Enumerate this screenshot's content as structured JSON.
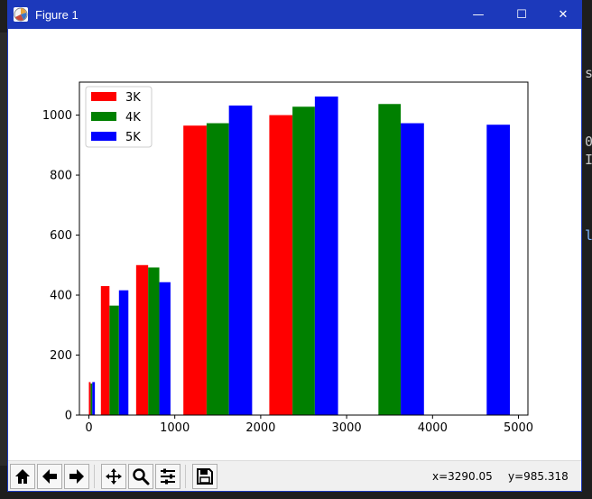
{
  "window": {
    "title": "Figure 1",
    "controls": {
      "minimize": "—",
      "maximize": "☐",
      "close": "✕"
    }
  },
  "background_editor": {
    "glyphs": [
      "s",
      "0",
      "I",
      "l"
    ]
  },
  "toolbar": {
    "buttons": [
      {
        "name": "home",
        "icon": "home-icon"
      },
      {
        "name": "back",
        "icon": "back-arrow-icon"
      },
      {
        "name": "forward",
        "icon": "forward-arrow-icon"
      },
      {
        "name": "pan",
        "icon": "move-icon"
      },
      {
        "name": "zoom",
        "icon": "magnifier-icon"
      },
      {
        "name": "configure",
        "icon": "sliders-icon"
      },
      {
        "name": "save",
        "icon": "floppy-icon"
      }
    ],
    "cursor_x": "x=3290.05",
    "cursor_y": "y=985.318"
  },
  "chart_data": {
    "type": "bar",
    "title": "",
    "xlabel": "",
    "ylabel": "",
    "xlim": [
      -110,
      5110
    ],
    "ylim": [
      0,
      1110
    ],
    "xticks": [
      0,
      1000,
      2000,
      3000,
      4000,
      5000
    ],
    "yticks": [
      0,
      200,
      400,
      600,
      800,
      1000
    ],
    "legend_position": "top-left",
    "series": [
      {
        "name": "3K",
        "color": "#ff0000",
        "bars": [
          {
            "x0": 0,
            "x1": 20,
            "value": 110
          },
          {
            "x0": 140,
            "x1": 240,
            "value": 430
          },
          {
            "x0": 550,
            "x1": 690,
            "value": 500
          },
          {
            "x0": 1100,
            "x1": 1370,
            "value": 965
          },
          {
            "x0": 2100,
            "x1": 2370,
            "value": 1000
          }
        ]
      },
      {
        "name": "4K",
        "color": "#008000",
        "bars": [
          {
            "x0": 20,
            "x1": 40,
            "value": 105
          },
          {
            "x0": 240,
            "x1": 350,
            "value": 365
          },
          {
            "x0": 690,
            "x1": 820,
            "value": 492
          },
          {
            "x0": 1370,
            "x1": 1630,
            "value": 973
          },
          {
            "x0": 2370,
            "x1": 2630,
            "value": 1028
          },
          {
            "x0": 3370,
            "x1": 3630,
            "value": 1037
          }
        ]
      },
      {
        "name": "5K",
        "color": "#0000ff",
        "bars": [
          {
            "x0": 40,
            "x1": 70,
            "value": 110
          },
          {
            "x0": 350,
            "x1": 460,
            "value": 416
          },
          {
            "x0": 820,
            "x1": 950,
            "value": 443
          },
          {
            "x0": 1630,
            "x1": 1900,
            "value": 1032
          },
          {
            "x0": 2630,
            "x1": 2900,
            "value": 1062
          },
          {
            "x0": 3630,
            "x1": 3900,
            "value": 973
          },
          {
            "x0": 4630,
            "x1": 4900,
            "value": 968
          }
        ]
      }
    ]
  }
}
